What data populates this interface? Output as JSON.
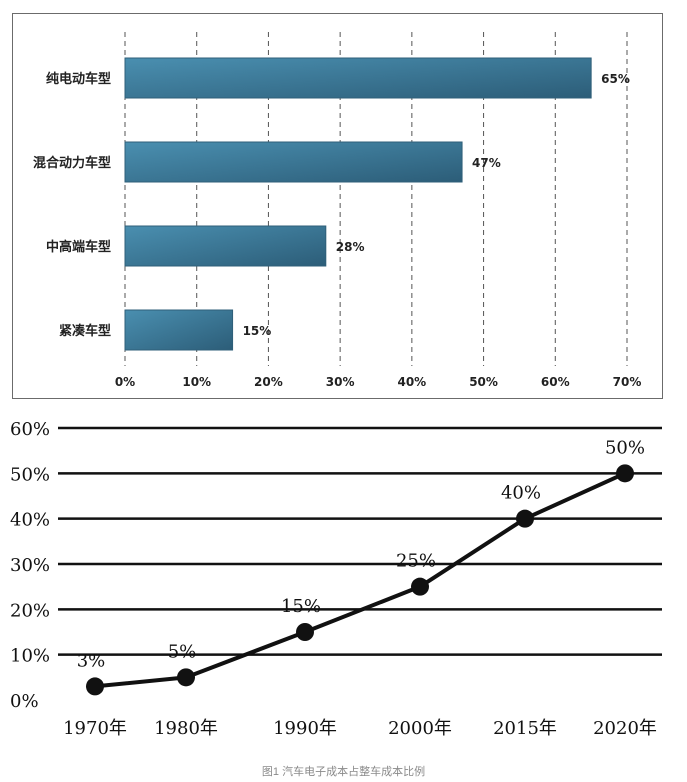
{
  "chart_data": [
    {
      "type": "bar",
      "orientation": "horizontal",
      "categories": [
        "纯电动车型",
        "混合动力车型",
        "中高端车型",
        "紧凑车型"
      ],
      "values": [
        65,
        47,
        28,
        15
      ],
      "value_labels": [
        "65%",
        "47%",
        "28%",
        "15%"
      ],
      "xlim": [
        0,
        70
      ],
      "xticks": [
        "0%",
        "10%",
        "20%",
        "30%",
        "40%",
        "50%",
        "60%",
        "70%"
      ],
      "grid": "vertical",
      "colors": {
        "bar": "#4a8fb0",
        "bar_dark": "#2c5d78",
        "grid": "#555555"
      }
    },
    {
      "type": "line",
      "x": [
        "1970年",
        "1980年",
        "1990年",
        "2000年",
        "2015年",
        "2020年"
      ],
      "values": [
        3,
        5,
        15,
        25,
        40,
        50
      ],
      "value_labels": [
        "3%",
        "5%",
        "15%",
        "25%",
        "40%",
        "50%"
      ],
      "ylim": [
        0,
        60
      ],
      "yticks": [
        "0%",
        "10%",
        "20%",
        "30%",
        "40%",
        "50%",
        "60%"
      ],
      "grid": "horizontal",
      "colors": {
        "line": "#111111",
        "grid": "#111111"
      }
    }
  ],
  "caption": "图1 汽车电子成本占整车成本比例"
}
